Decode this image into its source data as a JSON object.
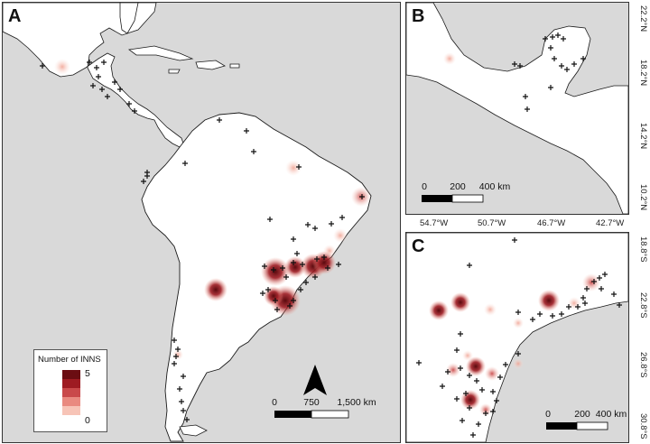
{
  "panels": {
    "a": {
      "label": "A"
    },
    "b": {
      "label": "B"
    },
    "c": {
      "label": "C"
    }
  },
  "legend": {
    "title": "Number of INNS",
    "max_label": "5",
    "min_label": "0",
    "colors": [
      "#6b0d12",
      "#9e1b22",
      "#c9494a",
      "#e98a80",
      "#f7c4b7",
      "#ffffff"
    ]
  },
  "scalebars": {
    "a": {
      "labels": [
        "0",
        "750",
        "1,500 km"
      ]
    },
    "b": {
      "labels": [
        "0",
        "200",
        "400 km"
      ]
    },
    "c": {
      "labels": [
        "0",
        "200",
        "400 km"
      ]
    }
  },
  "axes_b": {
    "lat_ticks": [
      "22.2°N",
      "18.2°N",
      "14.2°N",
      "10.2°N"
    ],
    "lon_ticks": [
      "54.7°W",
      "50.7°W",
      "46.7°W",
      "42.7°W"
    ]
  },
  "axes_c": {
    "lat_ticks": [
      "18.8°S",
      "22.8°S",
      "26.8°S",
      "30.8°S"
    ]
  },
  "colors": {
    "sea": "#d9d9d9",
    "land": "#ffffff",
    "coast": "#1a1a1a",
    "marker": "#111111"
  }
}
